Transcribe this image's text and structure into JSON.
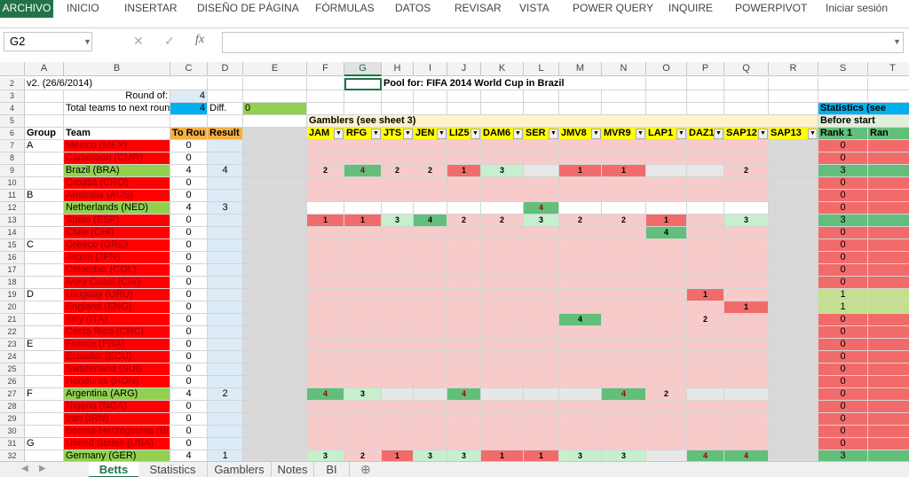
{
  "ribbon_tabs": [
    "ARCHIVO",
    "INICIO",
    "INSERTAR",
    "DISEÑO DE PÁGINA",
    "FÓRMULAS",
    "DATOS",
    "REVISAR",
    "VISTA",
    "POWER QUERY",
    "INQUIRE",
    "POWERPIVOT"
  ],
  "user": "Iniciar sesión",
  "name_box": "G2",
  "columns": [
    "A",
    "B",
    "C",
    "D",
    "E",
    "F",
    "G",
    "H",
    "I",
    "J",
    "K",
    "L",
    "M",
    "N",
    "O",
    "P",
    "Q",
    "R",
    "S",
    "T"
  ],
  "row_numbers": [
    2,
    3,
    4,
    5,
    6,
    7,
    8,
    9,
    10,
    11,
    12,
    13,
    14,
    15,
    16,
    17,
    18,
    19,
    20,
    21,
    22,
    23,
    24,
    25,
    26,
    27,
    28,
    29,
    30,
    31,
    32
  ],
  "header": {
    "version": "v2. (26/6/2014)",
    "round_of_label": "Round of:",
    "round_of": 4,
    "total_label": "Total teams to next round",
    "total": 4,
    "diff_label": "Diff.",
    "diff": 0,
    "title": "Pool for: FIFA 2014 World Cup in Brazil",
    "gamblers_label": "Gamblers (see sheet 3)",
    "stats_label": "Statistics (see",
    "before_start": "Before start"
  },
  "table": {
    "headers": [
      "Group",
      "Team",
      "To Rou",
      "Result"
    ],
    "gamblers": [
      "JAM",
      "RFG",
      "JTS",
      "JEN",
      "LIZ5",
      "DAM6",
      "SER",
      "JMV8",
      "MVR9",
      "LAP1",
      "DAZ1",
      "SAP12",
      "SAP13"
    ],
    "stat_headers": [
      "Rank 1",
      "Ran"
    ],
    "rows": [
      {
        "group": "A",
        "team": "Mexico (MEX)",
        "to_round": 0,
        "result": null,
        "rank1": 0
      },
      {
        "group": null,
        "team": "Cameroon (CMR)",
        "to_round": 0,
        "result": null,
        "rank1": 0
      },
      {
        "group": null,
        "team": "Brazil (BRA)",
        "to_round": 4,
        "result": 4,
        "picks": {
          "F": 2,
          "G": 4,
          "H": 2,
          "I": 2,
          "J": 1,
          "K": 3,
          "M": 1,
          "N": 1,
          "Q": 2
        },
        "rank1": 3
      },
      {
        "group": null,
        "team": "Croatia (CRO)",
        "to_round": 0,
        "result": null,
        "rank1": 0
      },
      {
        "group": "B",
        "team": "Australia (AUS)",
        "to_round": 0,
        "result": null,
        "rank1": 0
      },
      {
        "group": null,
        "team": "Netherlands (NED)",
        "to_round": 4,
        "result": 3,
        "picks": {
          "L": 4
        },
        "rank1": 0
      },
      {
        "group": null,
        "team": "Spain (ESP)",
        "to_round": 0,
        "result": null,
        "picks": {
          "F": 1,
          "G": 1,
          "H": 3,
          "I": 4,
          "J": 2,
          "K": 2,
          "L": 3,
          "M": 2,
          "N": 2,
          "O": 1,
          "Q": 3
        },
        "rank1": 3
      },
      {
        "group": null,
        "team": "Chile (CHI)",
        "to_round": 0,
        "result": null,
        "picks": {
          "O": 4
        },
        "rank1": 0
      },
      {
        "group": "C",
        "team": "Greece (GRE)",
        "to_round": 0,
        "result": null,
        "rank1": 0
      },
      {
        "group": null,
        "team": "Japan (JPN)",
        "to_round": 0,
        "result": null,
        "rank1": 0
      },
      {
        "group": null,
        "team": "Colombia (COL)",
        "to_round": 0,
        "result": null,
        "rank1": 0
      },
      {
        "group": null,
        "team": "Ivory Coast (CIV)",
        "to_round": 0,
        "result": null,
        "rank1": 0
      },
      {
        "group": "D",
        "team": "Uruguay (URU)",
        "to_round": 0,
        "result": null,
        "picks": {
          "P": 1
        },
        "rank1": 1
      },
      {
        "group": null,
        "team": "England (ENG)",
        "to_round": 0,
        "result": null,
        "picks": {
          "Q": 1
        },
        "rank1": 1
      },
      {
        "group": null,
        "team": "Italy (ITA)",
        "to_round": 0,
        "result": null,
        "picks": {
          "M": 4,
          "P": 2
        },
        "rank1": 0
      },
      {
        "group": null,
        "team": "Costa Rica (CRC)",
        "to_round": 0,
        "result": null,
        "rank1": 0
      },
      {
        "group": "E",
        "team": "France (FRA)",
        "to_round": 0,
        "result": null,
        "rank1": 0
      },
      {
        "group": null,
        "team": "Ecuador (ECU)",
        "to_round": 0,
        "result": null,
        "rank1": 0
      },
      {
        "group": null,
        "team": "Switzerland (SUI)",
        "to_round": 0,
        "result": null,
        "rank1": 0
      },
      {
        "group": null,
        "team": "Honduras (HON)",
        "to_round": 0,
        "result": null,
        "rank1": 0
      },
      {
        "group": "F",
        "team": "Argentina (ARG)",
        "to_round": 4,
        "result": 2,
        "picks": {
          "F": 4,
          "G": 3,
          "J": 4,
          "N": 4,
          "O": 2
        },
        "rank1": 0
      },
      {
        "group": null,
        "team": "Nigeria (NGA)",
        "to_round": 0,
        "result": null,
        "rank1": 0
      },
      {
        "group": null,
        "team": "Iran (IRN)",
        "to_round": 0,
        "result": null,
        "rank1": 0
      },
      {
        "group": null,
        "team": "Bosnia-Herzegovina (BIH)",
        "to_round": 0,
        "result": null,
        "rank1": 0
      },
      {
        "group": "G",
        "team": "United States (USA)",
        "to_round": 0,
        "result": null,
        "rank1": 0
      },
      {
        "group": null,
        "team": "Germany (GER)",
        "to_round": 4,
        "result": 1,
        "picks": {
          "F": 3,
          "G": 2,
          "H": 1,
          "I": 3,
          "J": 3,
          "K": 1,
          "L": 1,
          "M": 3,
          "N": 3,
          "P": 4,
          "Q": 4
        },
        "rank1": 3
      }
    ]
  },
  "sheet_tabs": [
    "Betts",
    "Statistics",
    "Gamblers",
    "Notes",
    "BI"
  ]
}
